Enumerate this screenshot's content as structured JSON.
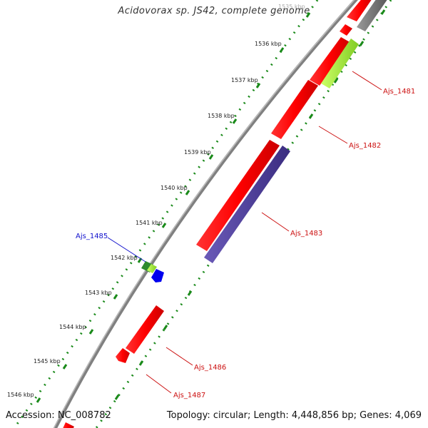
{
  "title": "Acidovorax sp. JS42, complete genome",
  "footer": {
    "accession": "Accession: NC_008782",
    "stats": "Topology: circular; Length: 4,448,856 bp; Genes: 4,069"
  },
  "colors": {
    "backbone": "#808080",
    "tick": "#1a8a1a",
    "gene_forward": "#ff0000",
    "gene_reverse_blue": "#4a3a99",
    "gene_lime": "#99e633",
    "gene_gray": "#777777",
    "small_green": "#2e8b2e",
    "small_blue": "#0000ee"
  },
  "ticks": [
    "1535 kbp",
    "1536 kbp",
    "1537 kbp",
    "1538 kbp",
    "1539 kbp",
    "1540 kbp",
    "1541 kbp",
    "1542 kbp",
    "1543 kbp",
    "1544 kbp",
    "1545 kbp",
    "1546 kbp"
  ],
  "gene_labels": [
    {
      "name": "Ajs_1481",
      "color": "red"
    },
    {
      "name": "Ajs_1482",
      "color": "red"
    },
    {
      "name": "Ajs_1483",
      "color": "red"
    },
    {
      "name": "Ajs_1485",
      "color": "blue"
    },
    {
      "name": "Ajs_1486",
      "color": "red"
    },
    {
      "name": "Ajs_1487",
      "color": "red"
    }
  ]
}
